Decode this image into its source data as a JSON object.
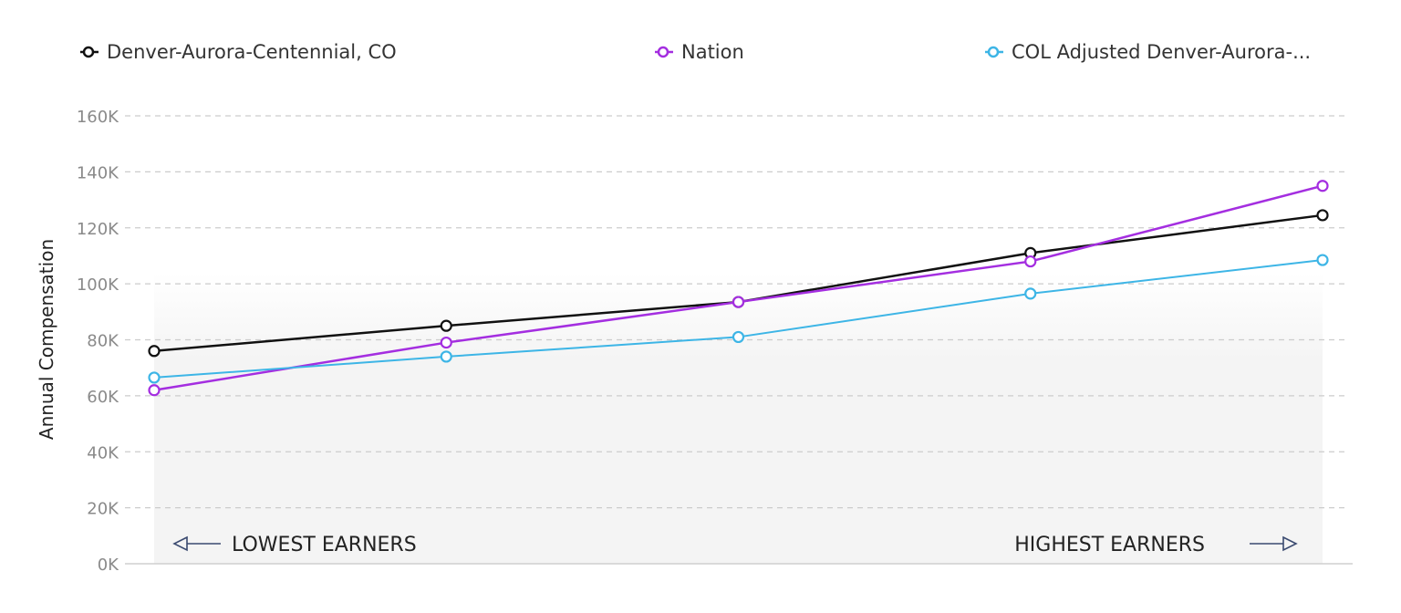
{
  "chart_data": {
    "type": "line",
    "title": "",
    "xlabel": "",
    "ylabel": "Annual Compensation",
    "ylim": [
      0,
      160000
    ],
    "yticks": [
      0,
      20000,
      40000,
      60000,
      80000,
      100000,
      120000,
      140000,
      160000
    ],
    "ytick_labels": [
      "0K",
      "20K",
      "40K",
      "60K",
      "80K",
      "100K",
      "120K",
      "140K",
      "160K"
    ],
    "grid": true,
    "legend_placement": "top",
    "x": [
      1,
      2,
      3,
      4,
      5
    ],
    "series": [
      {
        "name": "Denver-Aurora-Centennial, CO",
        "color": "#111111",
        "values": [
          76000,
          85000,
          93500,
          111000,
          124500
        ]
      },
      {
        "name": "Nation",
        "color": "#a42ee0",
        "values": [
          62000,
          79000,
          93500,
          108000,
          135000
        ]
      },
      {
        "name": "COL Adjusted Denver-Aurora-...",
        "color": "#3db5e6",
        "values": [
          66500,
          74000,
          81000,
          96500,
          108500
        ]
      }
    ],
    "annotations": {
      "left": "LOWEST EARNERS",
      "right": "HIGHEST EARNERS"
    }
  }
}
